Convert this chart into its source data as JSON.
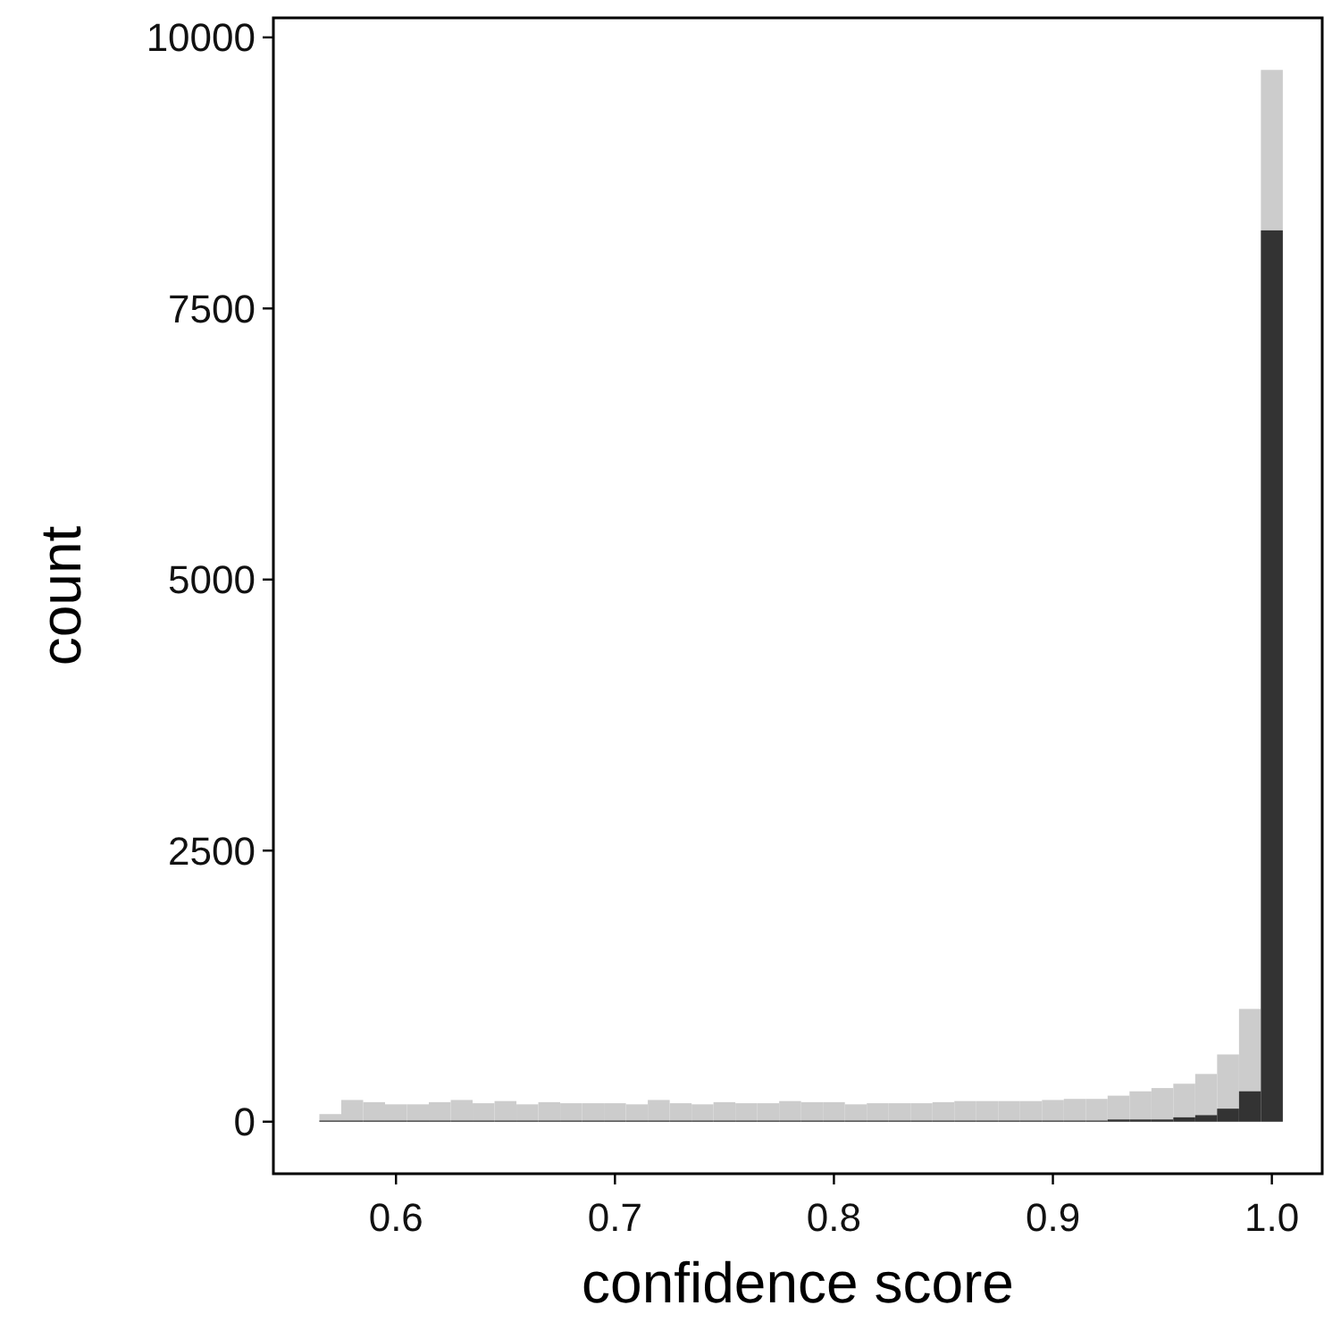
{
  "chart_data": {
    "type": "histogram",
    "xlabel": "confidence score",
    "ylabel": "count",
    "bins": [
      0.565,
      0.575,
      0.585,
      0.595,
      0.605,
      0.615,
      0.625,
      0.635,
      0.645,
      0.655,
      0.665,
      0.675,
      0.685,
      0.695,
      0.705,
      0.715,
      0.725,
      0.735,
      0.745,
      0.755,
      0.765,
      0.775,
      0.785,
      0.795,
      0.805,
      0.815,
      0.825,
      0.835,
      0.845,
      0.855,
      0.865,
      0.875,
      0.885,
      0.895,
      0.905,
      0.915,
      0.925,
      0.935,
      0.945,
      0.955,
      0.965,
      0.975,
      0.985,
      0.995,
      1.005
    ],
    "series": [
      {
        "color": "#cccccc",
        "values": [
          70,
          200,
          180,
          160,
          160,
          180,
          200,
          170,
          190,
          160,
          180,
          170,
          170,
          170,
          160,
          200,
          170,
          160,
          180,
          170,
          170,
          190,
          180,
          180,
          160,
          170,
          170,
          170,
          180,
          190,
          190,
          190,
          190,
          200,
          210,
          210,
          240,
          280,
          310,
          350,
          440,
          620,
          1040,
          9700
        ]
      },
      {
        "color": "#333333",
        "values": [
          10,
          10,
          10,
          10,
          10,
          10,
          10,
          10,
          10,
          10,
          10,
          10,
          10,
          10,
          10,
          10,
          10,
          10,
          10,
          10,
          10,
          10,
          10,
          10,
          10,
          10,
          10,
          10,
          10,
          10,
          10,
          10,
          10,
          10,
          10,
          10,
          20,
          20,
          20,
          40,
          60,
          120,
          280,
          8220
        ]
      }
    ],
    "xlim": [
      0.544,
      1.023
    ],
    "ylim": [
      -480,
      10180
    ],
    "xticks": [
      0.6,
      0.7,
      0.8,
      0.9,
      {
        "value": 1,
        "label": "1.0"
      }
    ],
    "yticks": [
      0,
      2500,
      5000,
      7500,
      10000
    ],
    "grid": false
  }
}
